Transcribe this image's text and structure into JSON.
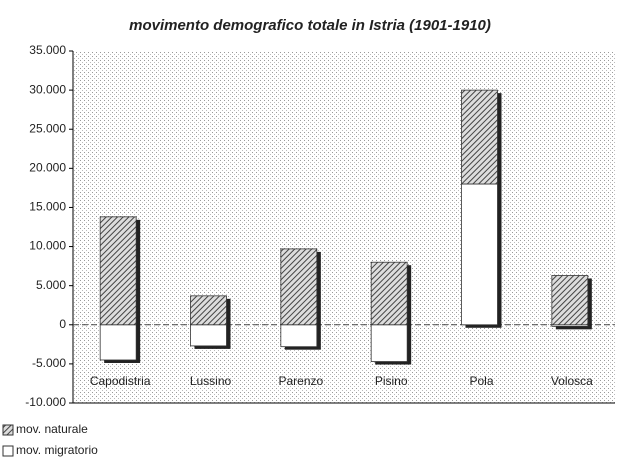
{
  "chart_data": {
    "type": "stacked_bar",
    "title": "movimento demografico totale in Istria (1901-1910)",
    "categories": [
      "Capodistria",
      "Lussino",
      "Parenzo",
      "Pisino",
      "Pola",
      "Volosca"
    ],
    "series": [
      {
        "name": "mov. naturale",
        "color": "#444444",
        "values": [
          13800,
          3700,
          9700,
          8000,
          12000,
          6300
        ]
      },
      {
        "name": "mov. migratorio",
        "color": "#ffffff",
        "values": [
          -4500,
          -2700,
          -2800,
          -4700,
          18000,
          -200
        ]
      }
    ],
    "ylim": [
      -10000,
      35000
    ],
    "yticks": [
      {
        "value": -10000,
        "label": "-10.000"
      },
      {
        "value": -5000,
        "label": "-5.000"
      },
      0,
      {
        "value": 5000,
        "label": "5.000"
      },
      {
        "value": 10000,
        "label": "10.000"
      },
      {
        "value": 15000,
        "label": "15.000"
      },
      {
        "value": 20000,
        "label": "20.000"
      },
      {
        "value": 25000,
        "label": "25.000"
      },
      {
        "value": 30000,
        "label": "30.000"
      },
      {
        "value": 35000,
        "label": "35.000"
      }
    ],
    "grid": false
  }
}
